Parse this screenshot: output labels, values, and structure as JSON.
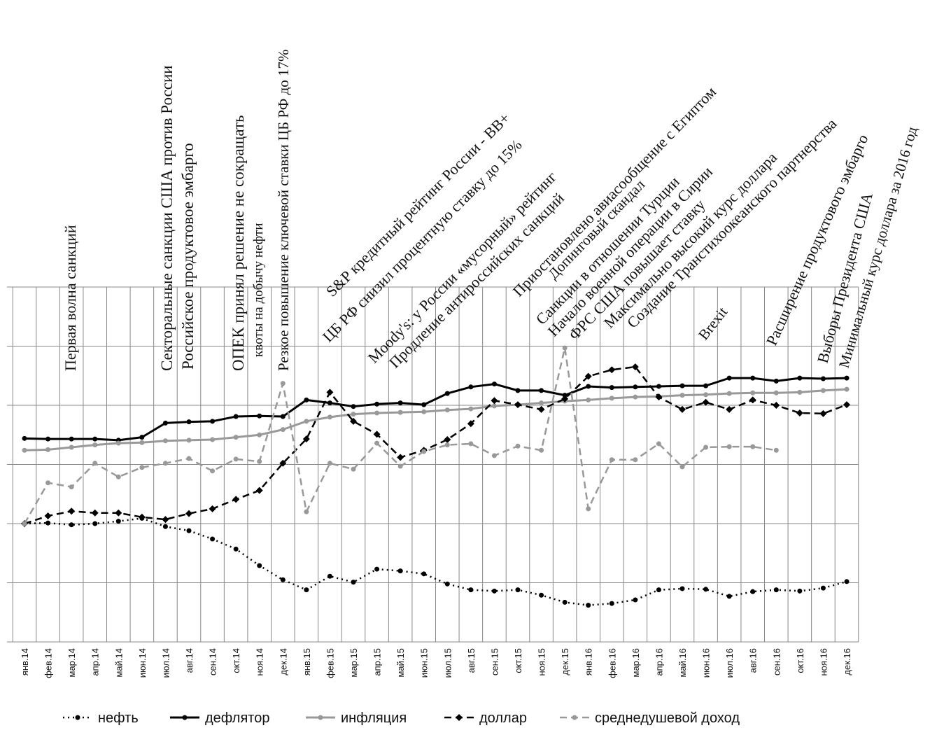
{
  "chart_data": {
    "type": "line",
    "categories": [
      "янв.14",
      "фев.14",
      "мар.14",
      "апр.14",
      "май.14",
      "июн.14",
      "июл.14",
      "авг.14",
      "сен.14",
      "окт.14",
      "ноя.14",
      "дек.14",
      "янв.15",
      "фев.15",
      "мар.15",
      "апр.15",
      "май.15",
      "июн.15",
      "июл.15",
      "авг.15",
      "сен.15",
      "окт.15",
      "ноя.15",
      "дек.15",
      "янв.16",
      "фев.16",
      "мар.16",
      "апр.16",
      "май.16",
      "июн.16",
      "июл.16",
      "авг.16",
      "сен.16",
      "окт.16",
      "ноя.16",
      "дек.16"
    ],
    "ylim": [
      0,
      6
    ],
    "yticks": [
      0,
      1,
      2,
      3,
      4,
      5,
      6
    ],
    "grid": true,
    "legend": "bottom",
    "series": [
      {
        "name": "нефть",
        "color": "#000000",
        "dash": "dotted",
        "marker": "circle",
        "values": [
          2.0,
          2.01,
          1.98,
          2.0,
          2.04,
          2.09,
          1.95,
          1.88,
          1.74,
          1.57,
          1.29,
          1.05,
          0.88,
          1.11,
          1.01,
          1.23,
          1.2,
          1.15,
          0.98,
          0.88,
          0.86,
          0.88,
          0.79,
          0.67,
          0.62,
          0.65,
          0.71,
          0.88,
          0.9,
          0.89,
          0.77,
          0.85,
          0.88,
          0.86,
          0.91,
          1.02
        ]
      },
      {
        "name": "дефлятор",
        "color": "#000000",
        "dash": "solid",
        "marker": "circle",
        "values": [
          3.44,
          3.43,
          3.43,
          3.43,
          3.41,
          3.46,
          3.7,
          3.72,
          3.73,
          3.81,
          3.82,
          3.81,
          4.09,
          4.04,
          3.98,
          4.02,
          4.04,
          4.01,
          4.2,
          4.31,
          4.36,
          4.25,
          4.25,
          4.17,
          4.32,
          4.3,
          4.31,
          4.32,
          4.33,
          4.33,
          4.46,
          4.46,
          4.41,
          4.46,
          4.45,
          4.46
        ]
      },
      {
        "name": "инфляция",
        "color": "#999999",
        "dash": "solid",
        "marker": "circle",
        "values": [
          3.24,
          3.25,
          3.29,
          3.33,
          3.36,
          3.37,
          3.4,
          3.41,
          3.42,
          3.46,
          3.5,
          3.59,
          3.73,
          3.8,
          3.85,
          3.87,
          3.88,
          3.89,
          3.92,
          3.94,
          3.99,
          4.01,
          4.04,
          4.07,
          4.09,
          4.12,
          4.14,
          4.15,
          4.17,
          4.18,
          4.2,
          4.21,
          4.21,
          4.22,
          4.25,
          4.27
        ]
      },
      {
        "name": "доллар",
        "color": "#000000",
        "dash": "dashed",
        "marker": "diamond",
        "values": [
          2.0,
          2.13,
          2.21,
          2.18,
          2.18,
          2.11,
          2.07,
          2.17,
          2.25,
          2.41,
          2.56,
          3.02,
          3.43,
          4.22,
          3.73,
          3.51,
          3.12,
          3.24,
          3.42,
          3.69,
          4.08,
          4.01,
          3.93,
          4.11,
          4.49,
          4.6,
          4.65,
          4.14,
          3.93,
          4.05,
          3.93,
          4.09,
          4.0,
          3.87,
          3.86,
          4.01
        ]
      },
      {
        "name": "среднедушевой доход",
        "color": "#999999",
        "dash": "dashed",
        "marker": "circle",
        "values": [
          2.0,
          2.69,
          2.62,
          3.02,
          2.79,
          2.95,
          3.02,
          3.1,
          2.89,
          3.09,
          3.05,
          4.37,
          2.2,
          3.02,
          2.92,
          3.36,
          2.97,
          3.22,
          3.33,
          3.35,
          3.15,
          3.31,
          3.24,
          4.97,
          2.25,
          3.08,
          3.08,
          3.35,
          2.96,
          3.29,
          3.3,
          3.3,
          3.24,
          null,
          null,
          null
        ]
      }
    ],
    "annotations": [
      "Первая волна санкций",
      "Секторальные санкции США против России",
      "Российское продуктовое эмбарго",
      "ОПЕК принял решение не сокращать",
      "квоты на добычу нефти",
      "Резкое повышение ключевой ставки ЦБ РФ до 17%",
      "S&P кредитный рейтинг России - BB+",
      "ЦБ РФ снизил процентную ставку до 15%",
      "Moody's: у России «мусорный» рейтинг",
      "Продление антироссийских санкций",
      "Приостановлено авиасообщение с Египтом",
      "Допинговый скандал",
      "Санкции в отношении Турции",
      "Начало военной операции в Сирии",
      "ФРС США повышает ставку",
      "Максимально высокий курс доллара",
      "Создание Транстихоокеанского партнерства",
      "Brexit",
      "Расширение продуктового эмбарго",
      "Выборы Президента США",
      "Минимальный курс доллара за 2016 год"
    ]
  }
}
